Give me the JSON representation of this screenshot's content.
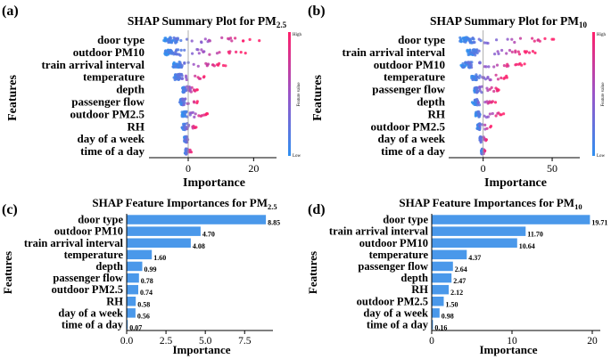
{
  "panel_labels": [
    "(a)",
    "(b)",
    "(c)",
    "(d)"
  ],
  "colors": {
    "bar": "#4a98ea",
    "low": "#2f8ff0",
    "high": "#ff1f6a",
    "axis": "#000000"
  },
  "chart_data": [
    {
      "type": "scatter",
      "subtype": "shap-beeswarm",
      "title": "SHAP Summary Plot for PM",
      "title_sub": "2.5",
      "xlabel": "Importance",
      "ylabel": "Features",
      "xlim": [
        -12,
        27
      ],
      "xticks": [
        0,
        20
      ],
      "categories": [
        "door type",
        "outdoor PM10",
        "train arrival interval",
        "temperature",
        "depth",
        "passenger flow",
        "outdoor PM2.5",
        "RH",
        "day of a week",
        "time of a day"
      ],
      "spread": [
        {
          "lo": -8,
          "hi": 22,
          "mid": 3
        },
        {
          "lo": -8,
          "hi": 18,
          "mid": 0
        },
        {
          "lo": -5,
          "hi": 12,
          "mid": 0
        },
        {
          "lo": -5,
          "hi": 6,
          "mid": 0
        },
        {
          "lo": -2,
          "hi": 3,
          "mid": 0
        },
        {
          "lo": -3,
          "hi": 3,
          "mid": 0
        },
        {
          "lo": -2,
          "hi": 6,
          "mid": 0
        },
        {
          "lo": -2,
          "hi": 3,
          "mid": 0
        },
        {
          "lo": -1.5,
          "hi": 1.5,
          "mid": 0
        },
        {
          "lo": -1,
          "hi": 1,
          "mid": 0
        }
      ],
      "colorbar": {
        "high": "High",
        "low": "Low",
        "label": "Feature value"
      }
    },
    {
      "type": "scatter",
      "subtype": "shap-beeswarm",
      "title": "SHAP Summary Plot for PM",
      "title_sub": "10",
      "xlabel": "Importance",
      "ylabel": "Features",
      "xlim": [
        -25,
        70
      ],
      "xticks": [
        0,
        50
      ],
      "categories": [
        "door type",
        "train arrival interval",
        "outdoor PM10",
        "temperature",
        "passenger flow",
        "depth",
        "RH",
        "outdoor PM2.5",
        "day of a week",
        "time of a day"
      ],
      "spread": [
        {
          "lo": -18,
          "hi": 55,
          "mid": 10
        },
        {
          "lo": -12,
          "hi": 38,
          "mid": 0
        },
        {
          "lo": -18,
          "hi": 30,
          "mid": 0
        },
        {
          "lo": -10,
          "hi": 20,
          "mid": 0
        },
        {
          "lo": -8,
          "hi": 12,
          "mid": 0
        },
        {
          "lo": -8,
          "hi": 10,
          "mid": 0
        },
        {
          "lo": -6,
          "hi": 15,
          "mid": 0
        },
        {
          "lo": -5,
          "hi": 7,
          "mid": 0
        },
        {
          "lo": -3,
          "hi": 3,
          "mid": 0
        },
        {
          "lo": -1.5,
          "hi": 1.5,
          "mid": 0
        }
      ],
      "colorbar": {
        "high": "High",
        "low": "Low",
        "label": "Feature value"
      }
    },
    {
      "type": "bar",
      "orientation": "horizontal",
      "title": "SHAP Feature Importances for PM",
      "title_sub": "2.5",
      "xlabel": "Importance",
      "ylabel": "Features",
      "xlim": [
        0,
        9.3
      ],
      "xticks": [
        0.0,
        2.5,
        5.0,
        7.5
      ],
      "xtick_labels": [
        "0.0",
        "2.5",
        "5.0",
        "7.5"
      ],
      "categories": [
        "door type",
        "outdoor PM10",
        "train arrival interval",
        "temperature",
        "depth",
        "passenger flow",
        "outdoor PM2.5",
        "RH",
        "day of a week",
        "time of a day"
      ],
      "values": [
        8.85,
        4.7,
        4.08,
        1.6,
        0.99,
        0.78,
        0.74,
        0.58,
        0.56,
        0.07
      ],
      "value_labels": [
        "8.85",
        "4.70",
        "4.08",
        "1.60",
        "0.99",
        "0.78",
        "0.74",
        "0.58",
        "0.56",
        "0.07"
      ]
    },
    {
      "type": "bar",
      "orientation": "horizontal",
      "title": "SHAP Feature Importances for PM",
      "title_sub": "10",
      "xlabel": "Importance",
      "ylabel": "Features",
      "xlim": [
        0,
        21
      ],
      "xticks": [
        0,
        10,
        20
      ],
      "xtick_labels": [
        "0",
        "10",
        "20"
      ],
      "categories": [
        "door type",
        "train arrival interval",
        "outdoor PM10",
        "temperature",
        "passenger flow",
        "depth",
        "RH",
        "outdoor PM2.5",
        "day of a week",
        "time of a day"
      ],
      "values": [
        19.71,
        11.7,
        10.64,
        4.37,
        2.64,
        2.47,
        2.12,
        1.5,
        0.98,
        0.16
      ],
      "value_labels": [
        "19.71",
        "11.70",
        "10.64",
        "4.37",
        "2.64",
        "2.47",
        "2.12",
        "1.50",
        "0.98",
        "0.16"
      ]
    }
  ]
}
